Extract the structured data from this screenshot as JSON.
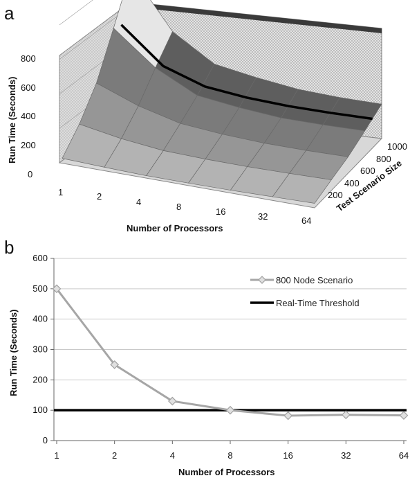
{
  "chart_data": [
    {
      "panel": "a",
      "type": "surface3d",
      "xlabel": "Number of Processors",
      "ylabel": "Run Time (Seconds)",
      "zlabel": "Test Scenario Size",
      "x_ticks": [
        "1",
        "2",
        "4",
        "8",
        "16",
        "32",
        "64"
      ],
      "y_ticks": [
        "0",
        "200",
        "400",
        "600",
        "800"
      ],
      "z_ticks": [
        "200",
        "400",
        "600",
        "800",
        "1000"
      ],
      "ylim": [
        0,
        800
      ],
      "grid": true,
      "surface_rows": [
        {
          "size": "1000",
          "values": [
            820,
            480,
            320,
            270,
            230,
            210,
            200
          ]
        },
        {
          "size": "800",
          "values": [
            560,
            360,
            230,
            190,
            160,
            150,
            145
          ]
        },
        {
          "size": "600",
          "values": [
            330,
            230,
            160,
            130,
            110,
            100,
            95
          ]
        },
        {
          "size": "400",
          "values": [
            180,
            130,
            95,
            80,
            70,
            65,
            62
          ]
        },
        {
          "size": "200",
          "values": [
            70,
            55,
            42,
            35,
            30,
            28,
            26
          ]
        }
      ],
      "highlight_line_values": [
        540,
        330,
        240,
        205,
        185,
        175,
        170
      ]
    },
    {
      "panel": "b",
      "type": "line",
      "xlabel": "Number of Processors",
      "ylabel": "Run Time (Seconds)",
      "categories": [
        "1",
        "2",
        "4",
        "8",
        "16",
        "32",
        "64"
      ],
      "y_ticks": [
        "0",
        "100",
        "200",
        "300",
        "400",
        "500",
        "600"
      ],
      "ylim": [
        0,
        600
      ],
      "grid": true,
      "legend_position": "top-right",
      "series": [
        {
          "name": "800 Node Scenario",
          "values": [
            500,
            250,
            130,
            100,
            82,
            85,
            83
          ],
          "color": "#a6a6a6",
          "marker": "diamond"
        },
        {
          "name": "Real-Time Threshold",
          "values": [
            100,
            100,
            100,
            100,
            100,
            100,
            100
          ],
          "color": "#000000",
          "marker": "none"
        }
      ]
    }
  ]
}
